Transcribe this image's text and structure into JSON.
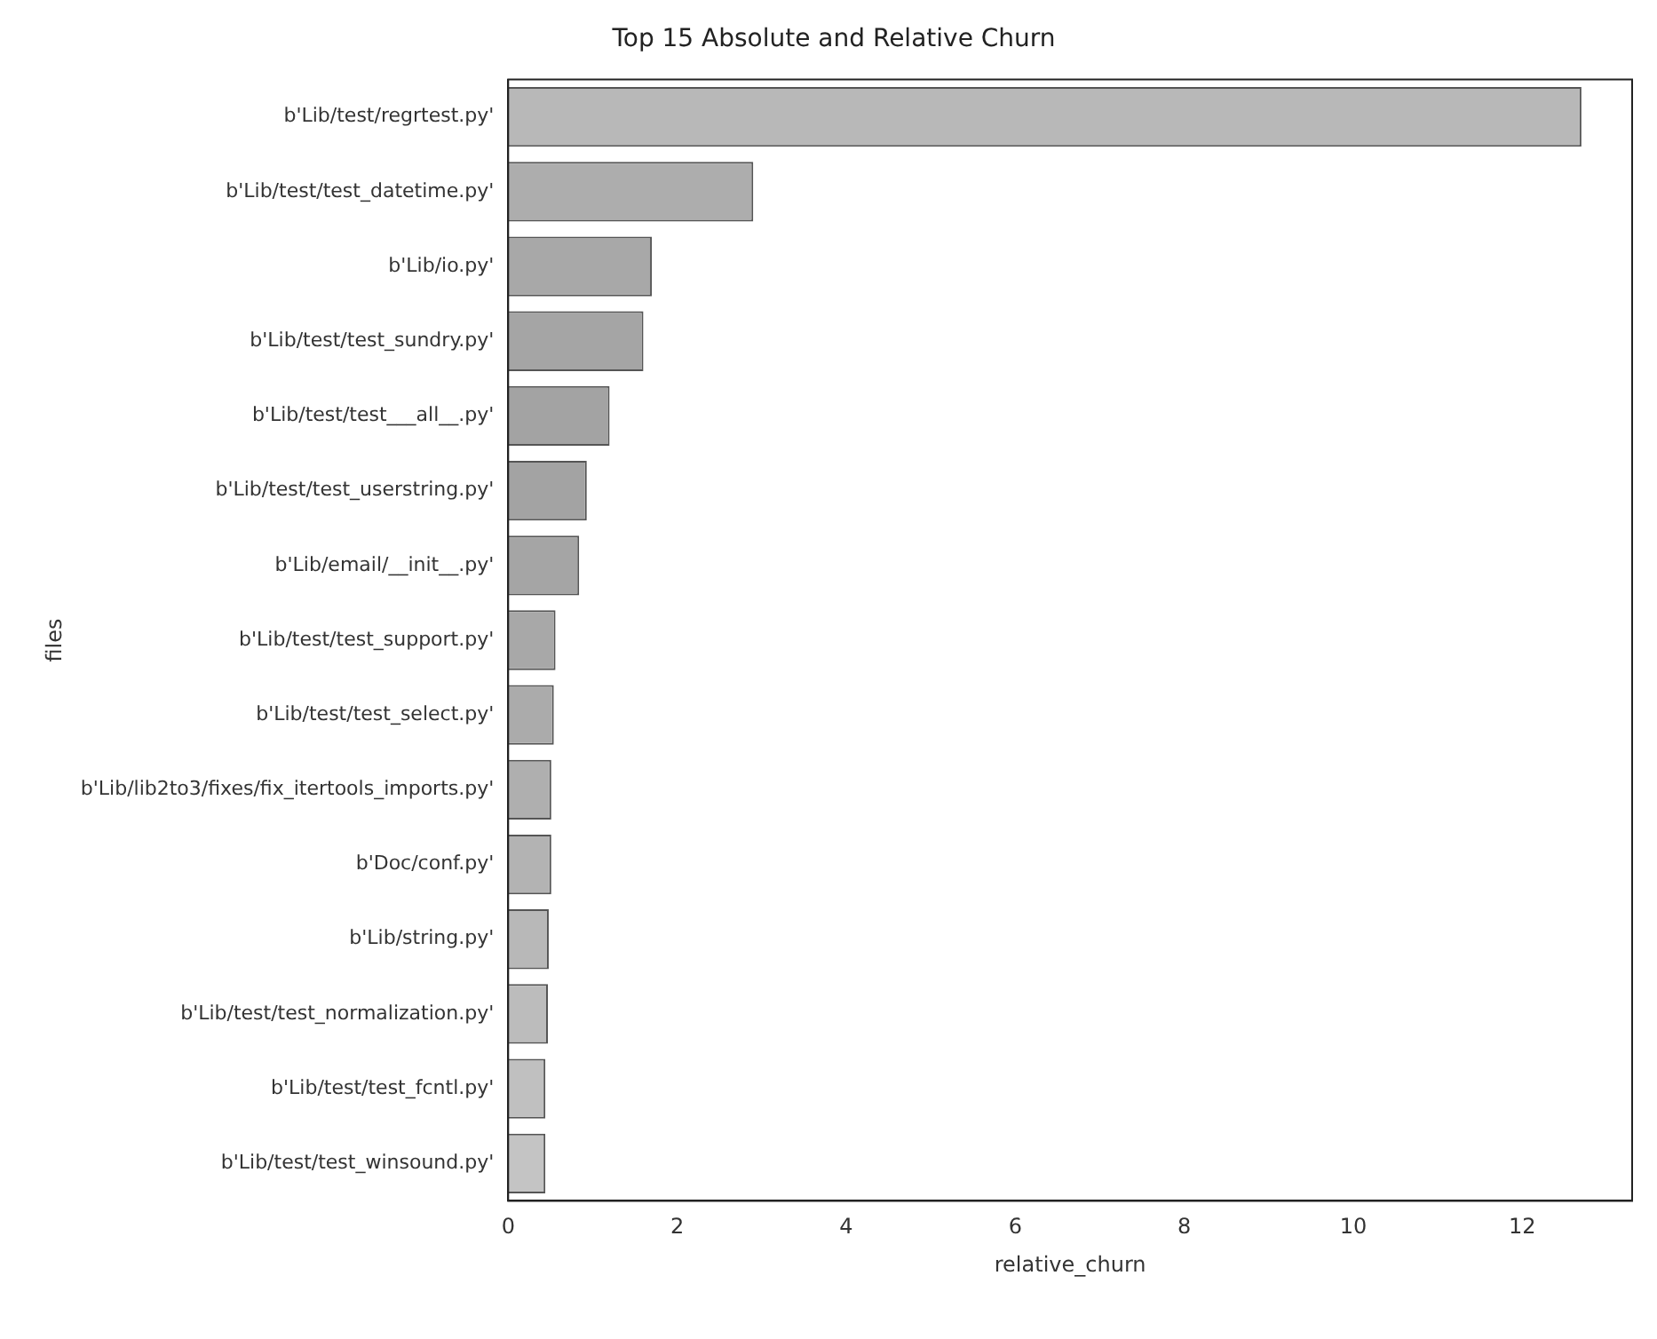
{
  "chart_data": {
    "type": "bar",
    "orientation": "horizontal",
    "title": "Top 15 Absolute and Relative Churn",
    "xlabel": "relative_churn",
    "ylabel": "files",
    "categories": [
      "b'Lib/test/regrtest.py'",
      "b'Lib/test/test_datetime.py'",
      "b'Lib/io.py'",
      "b'Lib/test/test_sundry.py'",
      "b'Lib/test/test___all__.py'",
      "b'Lib/test/test_userstring.py'",
      "b'Lib/email/__init__.py'",
      "b'Lib/test/test_support.py'",
      "b'Lib/test/test_select.py'",
      "b'Lib/lib2to3/fixes/fix_itertools_imports.py'",
      "b'Doc/conf.py'",
      "b'Lib/string.py'",
      "b'Lib/test/test_normalization.py'",
      "b'Lib/test/test_fcntl.py'",
      "b'Lib/test/test_winsound.py'"
    ],
    "values": [
      12.7,
      2.9,
      1.7,
      1.6,
      1.2,
      0.93,
      0.84,
      0.56,
      0.54,
      0.51,
      0.51,
      0.48,
      0.47,
      0.44,
      0.44
    ],
    "colors": [
      "#b8b8b8",
      "#adadad",
      "#a8a8a8",
      "#a5a5a5",
      "#a3a3a3",
      "#a3a3a3",
      "#a5a5a5",
      "#a8a8a8",
      "#ababab",
      "#afafaf",
      "#b3b3b3",
      "#b8b8b8",
      "#bcbcbc",
      "#c0c0c0",
      "#c4c4c4"
    ],
    "xlim": [
      0,
      13.3
    ],
    "xticks": [
      0,
      2,
      4,
      6,
      8,
      10,
      12
    ],
    "grid": false,
    "legend": false
  }
}
